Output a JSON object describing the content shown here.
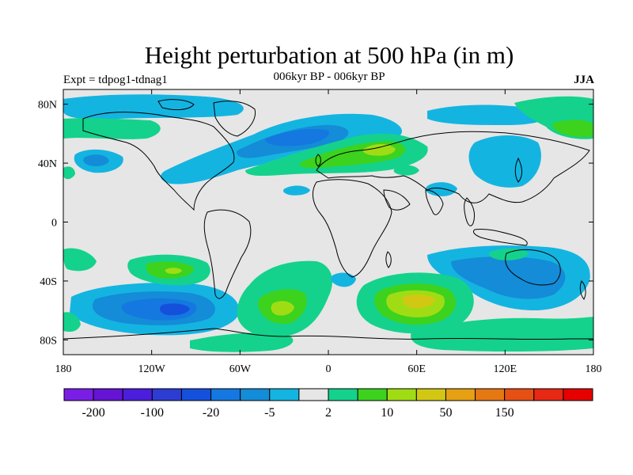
{
  "title": "Height perturbation at 500 hPa (in m)",
  "subtitle_left": "Expt = tdpog1-tdnag1",
  "subtitle_center": "006kyr BP - 006kyr BP",
  "subtitle_right": "JJA",
  "map": {
    "lon_range": [
      -180,
      180
    ],
    "lat_range": [
      -90,
      90
    ],
    "x_ticks": [
      {
        "lon": -180,
        "label": "180"
      },
      {
        "lon": -120,
        "label": "120W"
      },
      {
        "lon": -60,
        "label": "60W"
      },
      {
        "lon": 0,
        "label": "0"
      },
      {
        "lon": 60,
        "label": "60E"
      },
      {
        "lon": 120,
        "label": "120E"
      },
      {
        "lon": 180,
        "label": "180"
      }
    ],
    "y_ticks": [
      {
        "lat": 80,
        "label": "80N"
      },
      {
        "lat": 40,
        "label": "40N"
      },
      {
        "lat": 0,
        "label": "0"
      },
      {
        "lat": -40,
        "label": "40S"
      },
      {
        "lat": -80,
        "label": "80S"
      }
    ],
    "background_color": "#e6e6e6"
  },
  "colorbar": {
    "colors": [
      "#7a1ee6",
      "#6414d2",
      "#4b1edc",
      "#2d3cd2",
      "#1450dc",
      "#1478e0",
      "#148cd7",
      "#14b4e1",
      "#e6e6e6",
      "#14d28c",
      "#3cd21e",
      "#a0dc14",
      "#d2c814",
      "#e6a014",
      "#e67814",
      "#e65014",
      "#e62814",
      "#e60000"
    ],
    "labels": [
      {
        "boundary": 1,
        "text": "-200"
      },
      {
        "boundary": 3,
        "text": "-100"
      },
      {
        "boundary": 5,
        "text": "-20"
      },
      {
        "boundary": 7,
        "text": "-5"
      },
      {
        "boundary": 9,
        "text": "2"
      },
      {
        "boundary": 11,
        "text": "10"
      },
      {
        "boundary": 13,
        "text": "50"
      },
      {
        "boundary": 15,
        "text": "150"
      }
    ]
  }
}
